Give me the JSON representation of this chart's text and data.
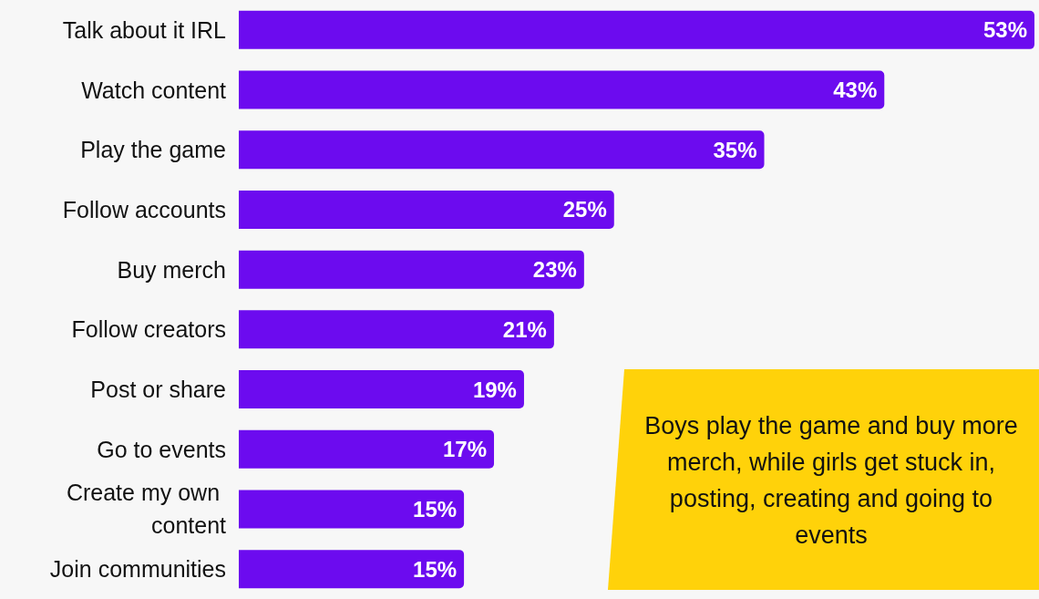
{
  "chart_data": {
    "type": "bar",
    "orientation": "horizontal",
    "categories": [
      "Talk about it IRL",
      "Watch content",
      "Play the game",
      "Follow accounts",
      "Buy merch",
      "Follow creators",
      "Post or share",
      "Go to events",
      "Create my own content",
      "Join communities"
    ],
    "values": [
      53,
      43,
      35,
      25,
      23,
      21,
      19,
      17,
      15,
      15
    ],
    "value_labels": [
      "53%",
      "43%",
      "35%",
      "25%",
      "23%",
      "21%",
      "19%",
      "17%",
      "15%",
      "15%"
    ],
    "color": "#6c0bef",
    "annotations": [
      "Boys play the game and buy more merch, while girls get stuck in, posting, creating and going to events"
    ]
  }
}
